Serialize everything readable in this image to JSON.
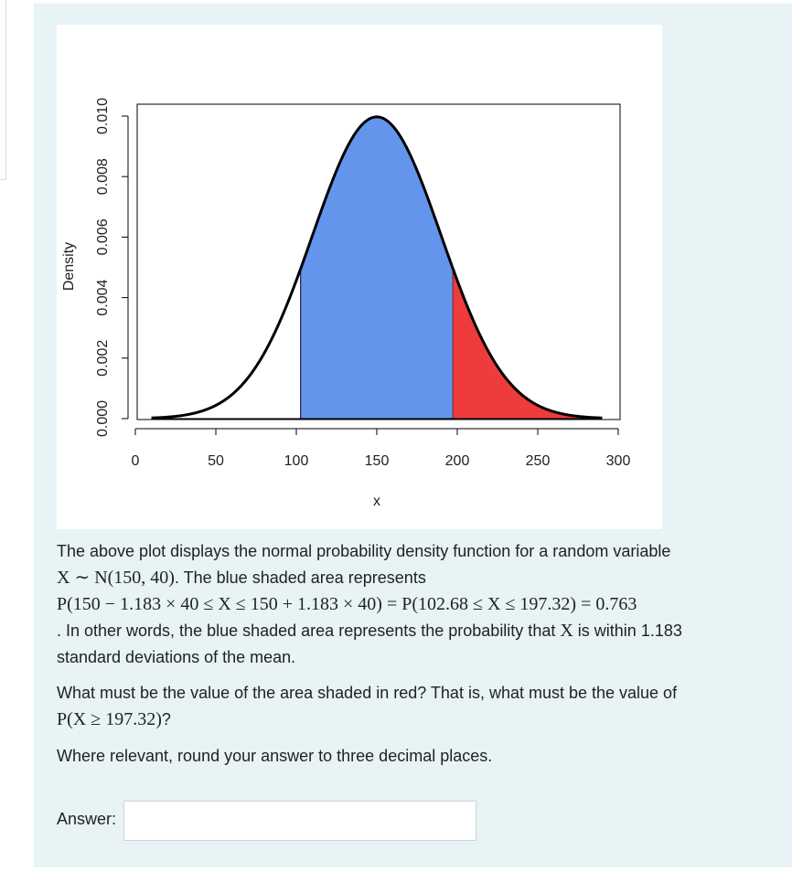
{
  "chart_data": {
    "type": "area",
    "distribution": "normal",
    "mean": 150,
    "sd": 40,
    "curve_x_range": [
      10,
      290
    ],
    "xlim": [
      0,
      300
    ],
    "ylim": [
      0,
      0.01
    ],
    "xlabel": "x",
    "ylabel": "Density",
    "x_ticks": [
      "0",
      "50",
      "100",
      "150",
      "200",
      "250",
      "300"
    ],
    "y_ticks": [
      "0.000",
      "0.002",
      "0.004",
      "0.006",
      "0.008",
      "0.010"
    ],
    "shaded_regions": [
      {
        "from": 102.68,
        "to": 197.32,
        "color": "#6495ed"
      },
      {
        "from": 197.32,
        "to": 290,
        "color": "#ee3b3b"
      }
    ]
  },
  "question": {
    "para1_line1": "The above plot displays the normal probability density function for a random variable",
    "para1_line2_math": "X ∼ N(150, 40)",
    "para1_line2_text": ". The blue shaded area represents",
    "para1_line3_math": "P(150 − 1.183 × 40 ≤ X ≤ 150 + 1.183 × 40) = P(102.68 ≤ X ≤ 197.32) = 0.763",
    "para1_line4_pre": ". In other words, the blue shaded area represents the probability that ",
    "para1_line4_math": "X",
    "para1_line4_post": " is within 1.183",
    "para1_line5": "standard deviations of the mean.",
    "para2_line1": "What must be the value of the area shaded in red? That is, what must be the value of",
    "para2_line2_math": "P(X ≥ 197.32)",
    "para2_line2_post": "?",
    "para3": "Where relevant, round your answer to three decimal places."
  },
  "answer": {
    "label": "Answer:",
    "value": ""
  }
}
